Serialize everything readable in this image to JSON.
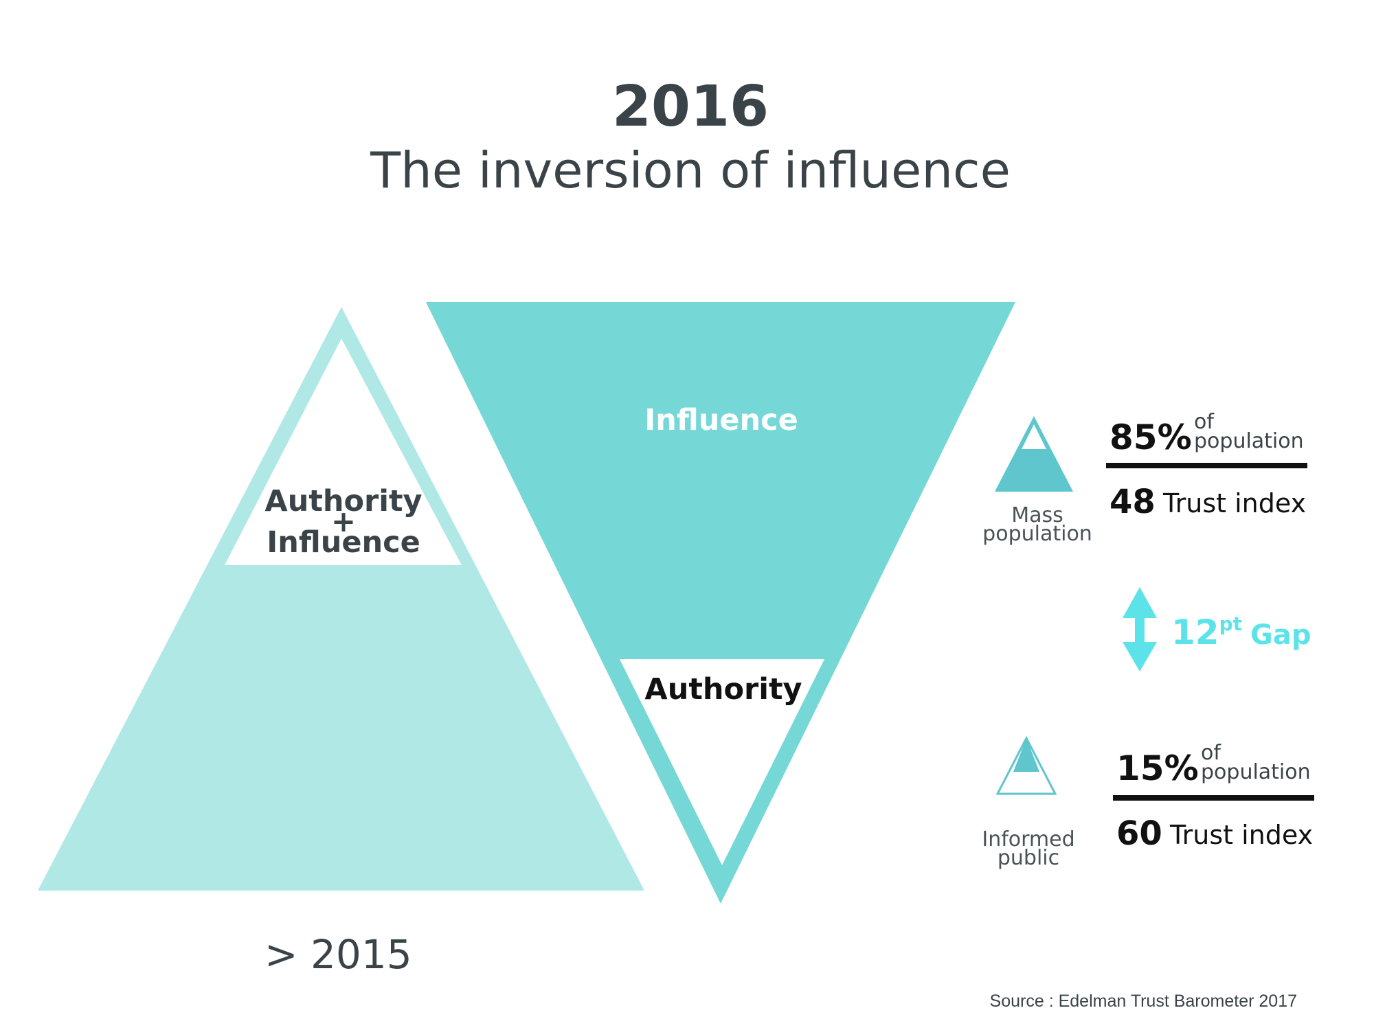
{
  "header": {
    "year": "2016",
    "subtitle": "The inversion of influence"
  },
  "left_pyramid": {
    "line1": "Authority",
    "plus": "+",
    "line2": "Influence",
    "caption": "> 2015"
  },
  "right_pyramid": {
    "top_label": "Influence",
    "bottom_label": "Authority"
  },
  "stats": {
    "mass": {
      "label_line1": "Mass",
      "label_line2": "population",
      "percent": "85%",
      "of": "of",
      "population_word": "population",
      "trust_value": "48",
      "trust_label": "Trust index"
    },
    "gap": {
      "value": "12",
      "unit": "pt",
      "word": "Gap"
    },
    "informed": {
      "label_line1": "Informed",
      "label_line2": "public",
      "percent": "15%",
      "of": "of",
      "population_word": "population",
      "trust_value": "60",
      "trust_label": "Trust index"
    }
  },
  "source": "Source : Edelman Trust Barometer 2017",
  "colors": {
    "light_teal": "#b0e8e6",
    "mid_teal": "#75d8d7",
    "icon_teal": "#5ec6cc",
    "gap_cyan": "#5ce3ea",
    "text_dark": "#3a4347",
    "text_black": "#111111"
  }
}
